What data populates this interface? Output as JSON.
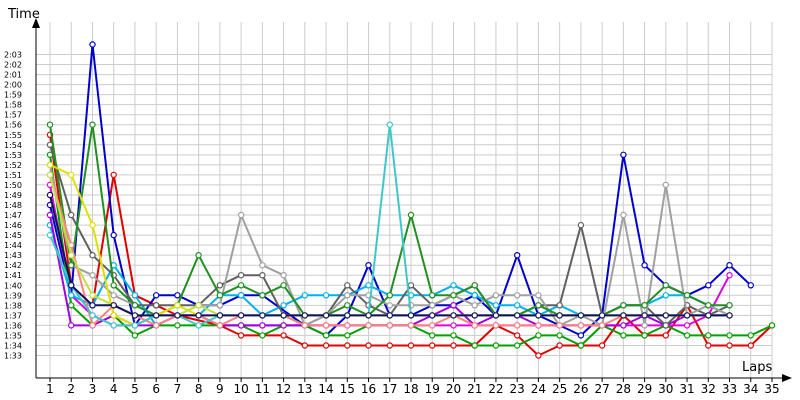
{
  "chart_data": {
    "type": "line",
    "xlabel": "Laps",
    "ylabel": "Time",
    "grid": true,
    "x": [
      1,
      2,
      3,
      4,
      5,
      6,
      7,
      8,
      9,
      10,
      11,
      12,
      13,
      14,
      15,
      16,
      17,
      18,
      19,
      20,
      21,
      22,
      23,
      24,
      25,
      26,
      27,
      28,
      29,
      30,
      31,
      32,
      33,
      34,
      35
    ],
    "xlim": [
      1,
      35
    ],
    "ylim_seconds": [
      93,
      125
    ],
    "y_tick_labels": [
      "1:33",
      "1:34",
      "1:35",
      "1:36",
      "1:37",
      "1:38",
      "1:39",
      "1:40",
      "1:41",
      "1:42",
      "1:43",
      "1:44",
      "1:45",
      "1:46",
      "1:47",
      "1:48",
      "1:49",
      "1:50",
      "1:51",
      "1:52",
      "1:53",
      "1:54",
      "1:55",
      "1:56",
      "1:57",
      "1:58",
      "1:59",
      "2:00",
      "2:01",
      "2:02",
      "2:03"
    ],
    "series": [
      {
        "color": "#e00000",
        "values": [
          115,
          100,
          98,
          111,
          99,
          98,
          97,
          null,
          96,
          95,
          null,
          95,
          94,
          94,
          94,
          94,
          94,
          94,
          94,
          94,
          94,
          96,
          95,
          93,
          94,
          94,
          94,
          97,
          95,
          95,
          98,
          94,
          94,
          94,
          96
        ]
      },
      {
        "color": "#0000cc",
        "values": [
          108,
          99,
          124,
          105,
          96,
          99,
          99,
          98,
          98,
          99,
          99,
          null,
          96,
          95,
          97,
          102,
          97,
          97,
          98,
          98,
          99,
          97,
          103,
          97,
          96,
          95,
          97,
          113,
          102,
          100,
          99,
          100,
          102,
          100,
          null
        ]
      },
      {
        "color": "#e000e0",
        "values": [
          110,
          99,
          97,
          96,
          96,
          97,
          97,
          97,
          96,
          96,
          96,
          96,
          96,
          96,
          96,
          96,
          96,
          96,
          96,
          96,
          96,
          96,
          96,
          96,
          96,
          96,
          96,
          96,
          96,
          96,
          96,
          97,
          101,
          null,
          null
        ]
      },
      {
        "color": "#00a000",
        "values": [
          113,
          98,
          96,
          97,
          95,
          96,
          96,
          96,
          96,
          96,
          95,
          96,
          96,
          95,
          95,
          96,
          96,
          96,
          95,
          95,
          94,
          94,
          94,
          95,
          95,
          94,
          96,
          95,
          95,
          96,
          95,
          95,
          95,
          95,
          96
        ]
      },
      {
        "color": "#00b0f0",
        "values": [
          106,
          99,
          98,
          102,
          99,
          96,
          97,
          97,
          99,
          99,
          97,
          98,
          99,
          99,
          99,
          100,
          99,
          99,
          99,
          100,
          99,
          98,
          98,
          97,
          98,
          97,
          97,
          98,
          98,
          99,
          99,
          98,
          97,
          null,
          null
        ]
      },
      {
        "color": "#a000e0",
        "values": [
          107,
          96,
          96,
          97,
          96,
          96,
          97,
          97,
          96,
          96,
          96,
          96,
          96,
          96,
          96,
          96,
          96,
          96,
          97,
          98,
          96,
          97,
          97,
          96,
          96,
          96,
          96,
          96,
          97,
          96,
          97,
          97,
          97,
          null,
          null
        ]
      },
      {
        "color": "#606060",
        "values": [
          114,
          107,
          103,
          101,
          98,
          98,
          98,
          98,
          100,
          101,
          101,
          97,
          96,
          97,
          100,
          98,
          97,
          100,
          98,
          99,
          100,
          97,
          97,
          98,
          98,
          106,
          97,
          98,
          98,
          96,
          98,
          97,
          98,
          null,
          null
        ]
      },
      {
        "color": "#a0a0a0",
        "values": [
          112,
          102,
          101,
          99,
          98,
          97,
          97,
          98,
          98,
          107,
          102,
          101,
          96,
          97,
          99,
          99,
          98,
          98,
          98,
          99,
          98,
          99,
          99,
          99,
          96,
          97,
          96,
          107,
          96,
          110,
          97,
          98,
          97,
          null,
          null
        ]
      },
      {
        "color": "#209020",
        "values": [
          116,
          102,
          116,
          100,
          98,
          97,
          98,
          103,
          99,
          100,
          99,
          100,
          97,
          97,
          98,
          97,
          99,
          107,
          99,
          99,
          100,
          97,
          97,
          98,
          97,
          97,
          97,
          98,
          98,
          100,
          99,
          98,
          98,
          null,
          null
        ]
      },
      {
        "color": "#ff8080",
        "values": [
          111,
          104,
          96,
          98,
          97,
          96,
          97,
          97,
          96,
          97,
          97,
          97,
          96,
          96,
          96,
          96,
          96,
          96,
          96,
          97,
          96,
          96,
          96,
          96,
          96,
          96,
          96,
          97,
          97,
          97,
          97,
          97,
          97,
          null,
          null
        ]
      },
      {
        "color": "#e0e000",
        "values": [
          112,
          111,
          106,
          97,
          96,
          97,
          98,
          97,
          97,
          97,
          97,
          97,
          97,
          97,
          97,
          97,
          97,
          97,
          97,
          97,
          97,
          97,
          97,
          97,
          97,
          97,
          97,
          97,
          97,
          97,
          97,
          97,
          97,
          null,
          null
        ]
      },
      {
        "color": "#40c8c8",
        "values": [
          105,
          100,
          97,
          96,
          96,
          97,
          97,
          96,
          97,
          97,
          97,
          97,
          97,
          97,
          97,
          97,
          116,
          97,
          97,
          97,
          97,
          97,
          97,
          97,
          97,
          97,
          97,
          97,
          97,
          97,
          97,
          97,
          97,
          null,
          null
        ]
      },
      {
        "color": "#c0e040",
        "values": [
          111,
          103,
          99,
          98,
          97,
          97,
          97,
          98,
          97,
          97,
          97,
          97,
          97,
          97,
          97,
          97,
          97,
          97,
          97,
          97,
          97,
          97,
          97,
          97,
          97,
          97,
          97,
          97,
          97,
          97,
          97,
          97,
          97,
          null,
          null
        ]
      },
      {
        "color": "#101060",
        "values": [
          109,
          100,
          98,
          98,
          97,
          97,
          97,
          97,
          97,
          97,
          97,
          97,
          97,
          97,
          97,
          97,
          97,
          97,
          97,
          97,
          97,
          97,
          97,
          97,
          97,
          97,
          97,
          97,
          97,
          97,
          97,
          97,
          97,
          null,
          null
        ]
      }
    ]
  }
}
